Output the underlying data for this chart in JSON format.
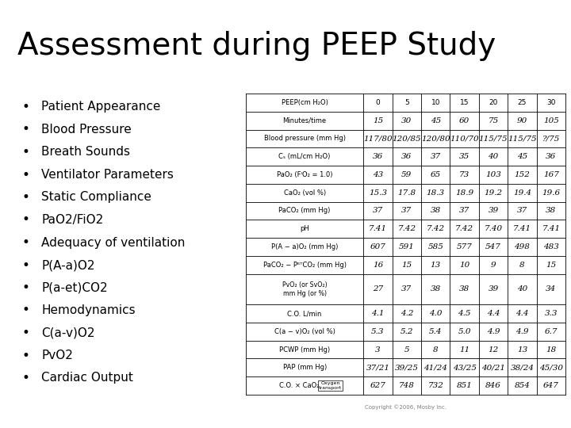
{
  "title": "Assessment during PEEP Study",
  "title_fontsize": 28,
  "background_color": "#ffffff",
  "bullet_items": [
    "Patient Appearance",
    "Blood Pressure",
    "Breath Sounds",
    "Ventilator Parameters",
    "Static Compliance",
    "PaO2/FiO2",
    "Adequacy of ventilation",
    "P(A-a)O2",
    "P(a-et)CO2",
    "Hemodynamics",
    "C(a-v)O2",
    "PvO2",
    "Cardiac Output"
  ],
  "bullet_fontsize": 11,
  "col_headers": [
    "0",
    "5",
    "10",
    "15",
    "20",
    "25",
    "30"
  ],
  "row_labels": [
    "PEEP(cm H₂O)",
    "Minutes/time",
    "Blood pressure (mm Hg)",
    "Cₛ (mL/cm H₂O)",
    "PaO₂ (FᴵO₂ = 1.0)",
    "CaO₂ (vol %)",
    "PaCO₂ (mm Hg)",
    "pH",
    "P(A − a)O₂ (mm Hg)",
    "PaCO₂ − PᴱᵀCO₂ (mm Hg)",
    "PvO₂ (or SvO₂)\nmm Hg (or %)",
    "C.O. L/min",
    "C(a − v)O₂ (vol %)",
    "PCWP (mm Hg)",
    "PAP (mm Hg)",
    "C.O. × CaO₂"
  ],
  "table_data": [
    [
      "15",
      "30",
      "45",
      "60",
      "75",
      "90",
      "105"
    ],
    [
      "117/80",
      "120/85",
      "120/80",
      "110/70",
      "115/75",
      "115/75",
      "?/75"
    ],
    [
      "36",
      "36",
      "37",
      "35",
      "40",
      "45",
      "36"
    ],
    [
      "43",
      "59",
      "65",
      "73",
      "103",
      "152",
      "167"
    ],
    [
      "15.3",
      "17.8",
      "18.3",
      "18.9",
      "19.2",
      "19.4",
      "19.6"
    ],
    [
      "37",
      "37",
      "38",
      "37",
      "39",
      "37",
      "38"
    ],
    [
      "7.41",
      "7.42",
      "7.42",
      "7.42",
      "7.40",
      "7.41",
      "7.41"
    ],
    [
      "607",
      "591",
      "585",
      "577",
      "547",
      "498",
      "483"
    ],
    [
      "16",
      "15",
      "13",
      "10",
      "9",
      "8",
      "15"
    ],
    [
      "27",
      "37",
      "38",
      "38",
      "39",
      "40",
      "34"
    ],
    [
      "4.1",
      "4.2",
      "4.0",
      "4.5",
      "4.4",
      "4.4",
      "3.3"
    ],
    [
      "5.3",
      "5.2",
      "5.4",
      "5.0",
      "4.9",
      "4.9",
      "6.7"
    ],
    [
      "3",
      "5",
      "8",
      "11",
      "12",
      "13",
      "18"
    ],
    [
      "37/21",
      "39/25",
      "41/24",
      "43/25",
      "40/21",
      "38/24",
      "45/30"
    ],
    [
      "627",
      "748",
      "732",
      "851",
      "846",
      "854",
      "647"
    ]
  ],
  "copyright_text": "Copyright ©2006, Mosby Inc.",
  "oxygen_transport_label": "Oxygen\ntransport"
}
